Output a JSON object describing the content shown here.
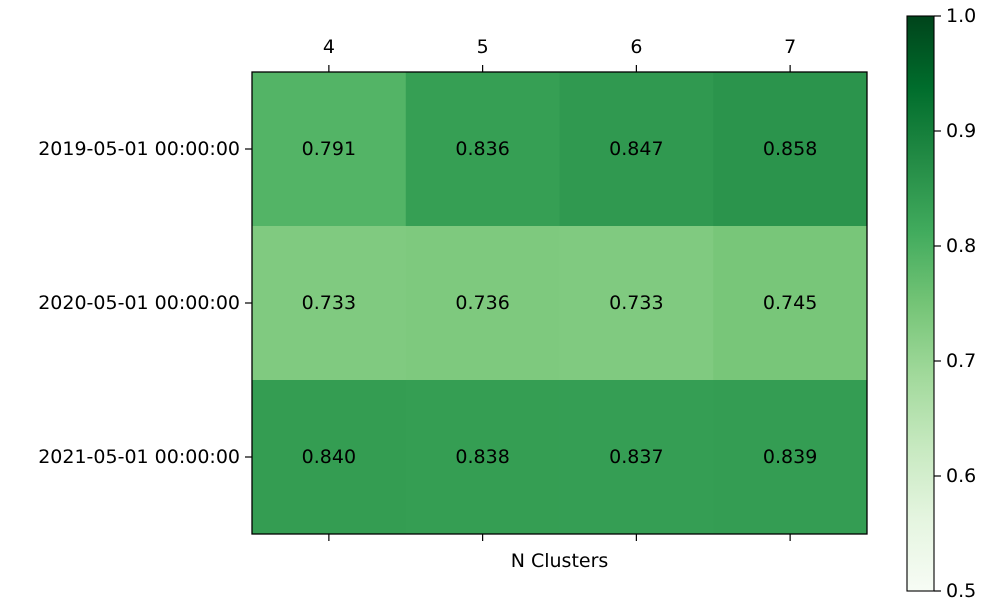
{
  "chart_data": {
    "type": "heatmap",
    "title": "",
    "xlabel": "N Clusters",
    "ylabel": "",
    "x_categories": [
      "4",
      "5",
      "6",
      "7"
    ],
    "y_categories": [
      "2019-05-01 00:00:00",
      "2020-05-01 00:00:00",
      "2021-05-01 00:00:00"
    ],
    "values": [
      [
        0.791,
        0.836,
        0.847,
        0.858
      ],
      [
        0.733,
        0.736,
        0.733,
        0.745
      ],
      [
        0.84,
        0.838,
        0.837,
        0.839
      ]
    ],
    "cell_labels": [
      [
        "0.791",
        "0.836",
        "0.847",
        "0.858"
      ],
      [
        "0.733",
        "0.736",
        "0.733",
        "0.745"
      ],
      [
        "0.840",
        "0.838",
        "0.837",
        "0.839"
      ]
    ],
    "x_tick_position": "top",
    "colormap": "Greens",
    "colorbar": {
      "range": [
        0.5,
        1.0
      ],
      "ticks": [
        0.5,
        0.6,
        0.7,
        0.8,
        0.9,
        1.0
      ],
      "tick_labels": [
        "0.5",
        "0.6",
        "0.7",
        "0.8",
        "0.9",
        "1.0"
      ],
      "placement": "right"
    },
    "grid": false
  }
}
